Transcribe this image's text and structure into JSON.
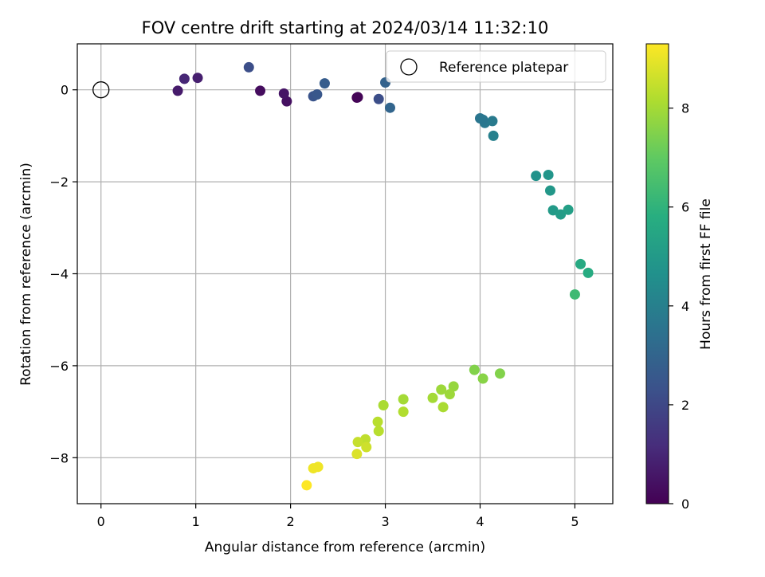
{
  "chart_data": {
    "type": "scatter",
    "title": "FOV centre drift starting at 2024/03/14 11:32:10",
    "xlabel": "Angular distance from reference (arcmin)",
    "ylabel": "Rotation from reference (arcmin)",
    "xlim": [
      -0.25,
      5.4
    ],
    "ylim": [
      -9.0,
      1.0
    ],
    "x_ticks": [
      0,
      1,
      2,
      3,
      4,
      5
    ],
    "x_tick_labels": [
      "0",
      "1",
      "2",
      "3",
      "4",
      "5"
    ],
    "y_ticks": [
      0,
      -2,
      -4,
      -6,
      -8
    ],
    "y_tick_labels": [
      "0",
      "−2",
      "−4",
      "−6",
      "−8"
    ],
    "grid": true,
    "legend": {
      "placement": "top-right",
      "entries": [
        "Reference platepar"
      ]
    },
    "reference_point": {
      "x": 0,
      "y": 0
    },
    "colorbar": {
      "label": "Hours from first FF file",
      "range": [
        0,
        9.3
      ],
      "ticks": [
        0,
        2,
        4,
        6,
        8
      ],
      "tick_labels": [
        "0",
        "2",
        "4",
        "6",
        "8"
      ],
      "colormap": "viridis"
    },
    "points": [
      {
        "x": 2.7,
        "y": -0.17,
        "h": 0.0
      },
      {
        "x": 2.71,
        "y": -0.16,
        "h": 0.1
      },
      {
        "x": 1.68,
        "y": -0.02,
        "h": 0.3
      },
      {
        "x": 1.96,
        "y": -0.25,
        "h": 0.4
      },
      {
        "x": 1.93,
        "y": -0.08,
        "h": 0.5
      },
      {
        "x": 0.81,
        "y": -0.02,
        "h": 0.7
      },
      {
        "x": 1.02,
        "y": 0.26,
        "h": 0.8
      },
      {
        "x": 0.88,
        "y": 0.24,
        "h": 1.0
      },
      {
        "x": 2.93,
        "y": -0.2,
        "h": 2.2
      },
      {
        "x": 2.24,
        "y": -0.14,
        "h": 2.4
      },
      {
        "x": 2.28,
        "y": -0.1,
        "h": 2.5
      },
      {
        "x": 1.56,
        "y": 0.49,
        "h": 2.2
      },
      {
        "x": 2.36,
        "y": 0.14,
        "h": 2.7
      },
      {
        "x": 3.0,
        "y": 0.16,
        "h": 2.9
      },
      {
        "x": 3.05,
        "y": -0.39,
        "h": 3.0
      },
      {
        "x": 4.0,
        "y": -0.62,
        "h": 3.6
      },
      {
        "x": 4.05,
        "y": -0.72,
        "h": 3.7
      },
      {
        "x": 4.13,
        "y": -0.68,
        "h": 3.8
      },
      {
        "x": 4.14,
        "y": -1.0,
        "h": 4.0
      },
      {
        "x": 4.03,
        "y": -0.65,
        "h": 3.65
      },
      {
        "x": 4.59,
        "y": -1.87,
        "h": 4.7
      },
      {
        "x": 4.72,
        "y": -1.85,
        "h": 4.8
      },
      {
        "x": 4.74,
        "y": -2.19,
        "h": 4.9
      },
      {
        "x": 4.77,
        "y": -2.62,
        "h": 5.0
      },
      {
        "x": 4.85,
        "y": -2.71,
        "h": 5.1
      },
      {
        "x": 4.93,
        "y": -2.61,
        "h": 5.2
      },
      {
        "x": 5.06,
        "y": -3.79,
        "h": 5.6
      },
      {
        "x": 5.14,
        "y": -3.98,
        "h": 5.7
      },
      {
        "x": 5.0,
        "y": -4.45,
        "h": 6.3
      },
      {
        "x": 3.94,
        "y": -6.09,
        "h": 7.5
      },
      {
        "x": 4.21,
        "y": -6.17,
        "h": 7.5
      },
      {
        "x": 4.03,
        "y": -6.28,
        "h": 7.6
      },
      {
        "x": 3.72,
        "y": -6.45,
        "h": 7.8
      },
      {
        "x": 3.59,
        "y": -6.52,
        "h": 7.9
      },
      {
        "x": 3.68,
        "y": -6.62,
        "h": 7.9
      },
      {
        "x": 3.5,
        "y": -6.7,
        "h": 8.0
      },
      {
        "x": 3.19,
        "y": -6.73,
        "h": 8.0
      },
      {
        "x": 3.61,
        "y": -6.9,
        "h": 8.1
      },
      {
        "x": 2.98,
        "y": -6.86,
        "h": 8.1
      },
      {
        "x": 3.19,
        "y": -7.0,
        "h": 8.2
      },
      {
        "x": 2.92,
        "y": -7.22,
        "h": 8.3
      },
      {
        "x": 2.93,
        "y": -7.42,
        "h": 8.3
      },
      {
        "x": 2.79,
        "y": -7.6,
        "h": 8.4
      },
      {
        "x": 2.71,
        "y": -7.66,
        "h": 8.5
      },
      {
        "x": 2.8,
        "y": -7.77,
        "h": 8.6
      },
      {
        "x": 2.7,
        "y": -7.92,
        "h": 8.8
      },
      {
        "x": 2.29,
        "y": -8.2,
        "h": 9.1
      },
      {
        "x": 2.24,
        "y": -8.23,
        "h": 9.1
      },
      {
        "x": 2.17,
        "y": -8.6,
        "h": 9.3
      }
    ]
  }
}
